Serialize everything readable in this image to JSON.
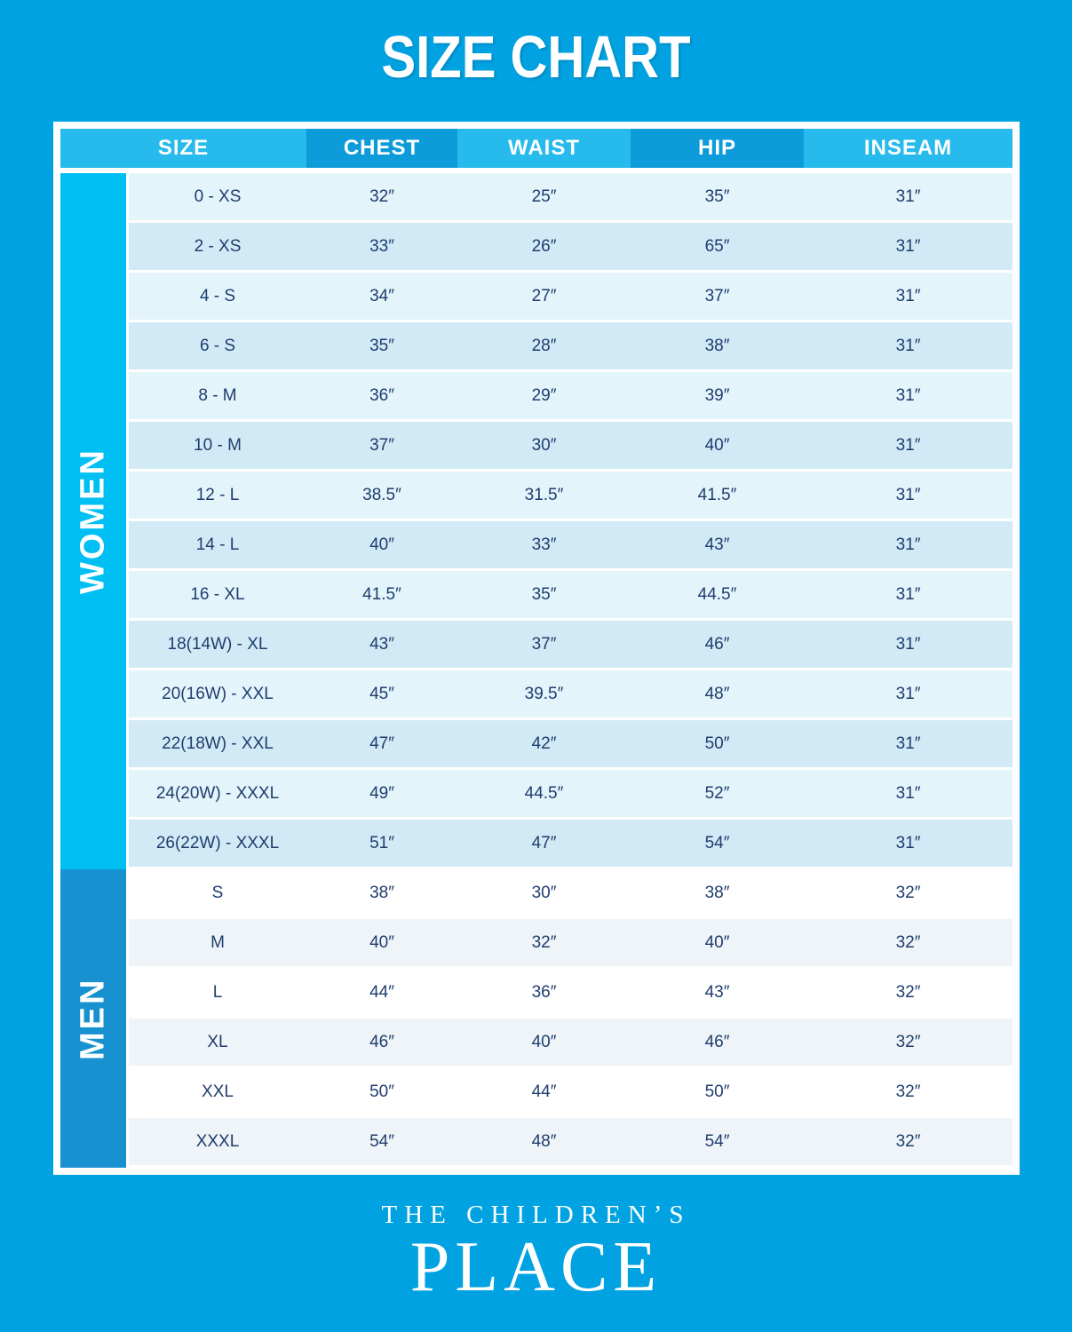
{
  "title": "SIZE CHART",
  "chart_data": {
    "type": "table",
    "title": "SIZE CHART",
    "columns": [
      "SIZE",
      "CHEST",
      "WAIST",
      "HIP",
      "INSEAM"
    ],
    "sections": [
      {
        "group": "WOMEN",
        "rows": [
          [
            "0 - XS",
            "32″",
            "25″",
            "35″",
            "31″"
          ],
          [
            "2 - XS",
            "33″",
            "26″",
            "65″",
            "31″"
          ],
          [
            "4 - S",
            "34″",
            "27″",
            "37″",
            "31″"
          ],
          [
            "6 - S",
            "35″",
            "28″",
            "38″",
            "31″"
          ],
          [
            "8 - M",
            "36″",
            "29″",
            "39″",
            "31″"
          ],
          [
            "10 - M",
            "37″",
            "30″",
            "40″",
            "31″"
          ],
          [
            "12 - L",
            "38.5″",
            "31.5″",
            "41.5″",
            "31″"
          ],
          [
            "14 - L",
            "40″",
            "33″",
            "43″",
            "31″"
          ],
          [
            "16 - XL",
            "41.5″",
            "35″",
            "44.5″",
            "31″"
          ],
          [
            "18(14W) - XL",
            "43″",
            "37″",
            "46″",
            "31″"
          ],
          [
            "20(16W) - XXL",
            "45″",
            "39.5″",
            "48″",
            "31″"
          ],
          [
            "22(18W) - XXL",
            "47″",
            "42″",
            "50″",
            "31″"
          ],
          [
            "24(20W) - XXXL",
            "49″",
            "44.5″",
            "52″",
            "31″"
          ],
          [
            "26(22W) - XXXL",
            "51″",
            "47″",
            "54″",
            "31″"
          ]
        ]
      },
      {
        "group": "MEN",
        "rows": [
          [
            "S",
            "38″",
            "30″",
            "38″",
            "32″"
          ],
          [
            "M",
            "40″",
            "32″",
            "40″",
            "32″"
          ],
          [
            "L",
            "44″",
            "36″",
            "43″",
            "32″"
          ],
          [
            "XL",
            "46″",
            "40″",
            "46″",
            "32″"
          ],
          [
            "XXL",
            "50″",
            "44″",
            "50″",
            "32″"
          ],
          [
            "XXXL",
            "54″",
            "48″",
            "54″",
            "32″"
          ]
        ]
      }
    ]
  },
  "footer": {
    "brand_line1": "THE CHILDREN’S",
    "brand_line2": "PLACE"
  },
  "colors": {
    "background": "#00A2E1",
    "header_light": "#27BAEC",
    "header_dark": "#0D9CD9",
    "sidebar_women": "#00BFF3",
    "sidebar_men": "#1791D0",
    "row_women_a": "#E3F4FB",
    "row_women_b": "#D2EAF6",
    "row_men_a": "#FFFFFF",
    "row_men_b": "#EEF4F8",
    "text_dark": "#1F3D6D"
  }
}
